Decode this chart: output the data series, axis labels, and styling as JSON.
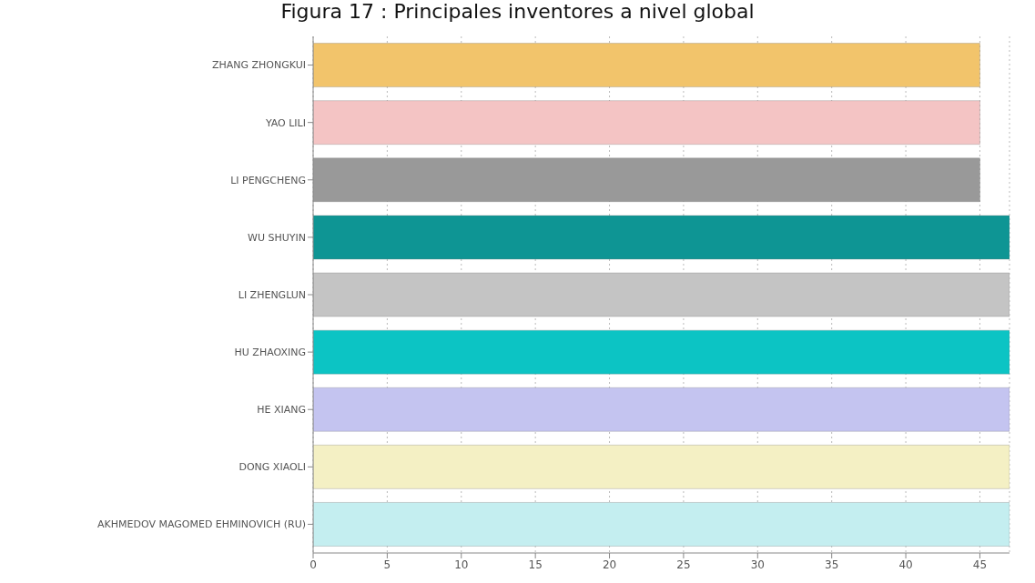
{
  "chart_data": {
    "type": "bar",
    "orientation": "horizontal",
    "title": "Figura 17 : Principales inventores a nivel global",
    "categories": [
      "ZHANG ZHONGKUI",
      "YAO LILI",
      "LI PENGCHENG",
      "WU SHUYIN",
      "LI ZHENGLUN",
      "HU ZHAOXING",
      "HE XIANG",
      "DONG XIAOLI",
      "AKHMEDOV MAGOMED EHMINOVICH (RU)"
    ],
    "values": [
      45,
      45,
      45,
      47,
      47,
      47,
      47,
      47,
      47
    ],
    "colors": [
      "#f2c46b",
      "#f4c4c4",
      "#999999",
      "#0e9594",
      "#c4c4c4",
      "#0cc4c4",
      "#c4c4f0",
      "#f4f0c4",
      "#c4eef0"
    ],
    "xlim": [
      0,
      47
    ],
    "xticks": [
      0,
      5,
      10,
      15,
      20,
      25,
      30,
      35,
      40,
      45
    ],
    "grid": "x"
  }
}
